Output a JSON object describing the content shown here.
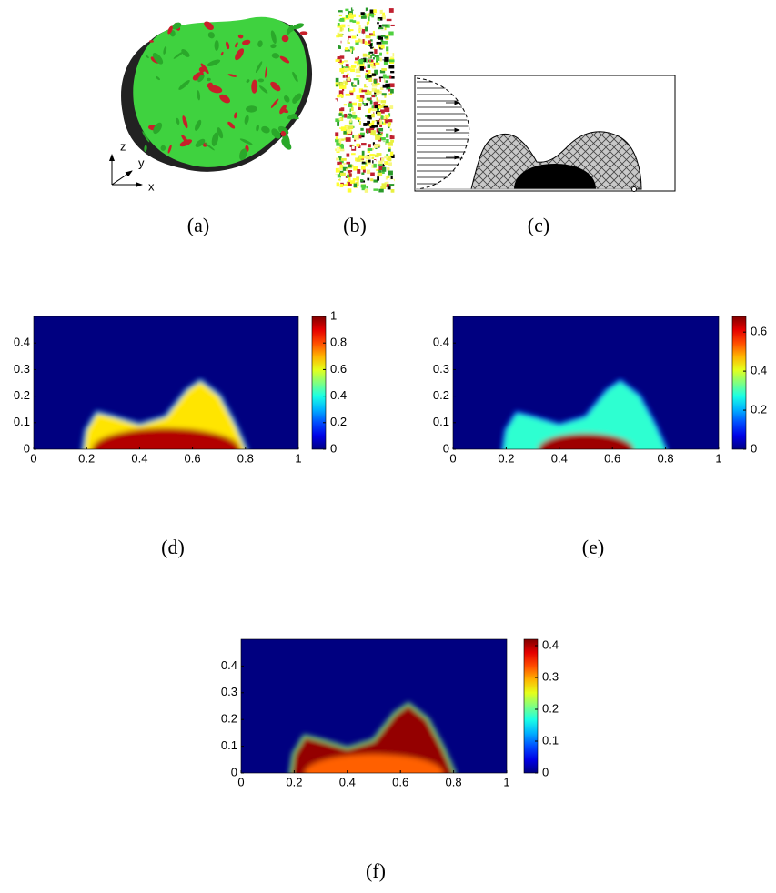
{
  "panels": {
    "a": {
      "label": "(a)",
      "axes": [
        "z",
        "y",
        "x"
      ]
    },
    "b": {
      "label": "(b)"
    },
    "c": {
      "label": "(c)"
    }
  },
  "chart_data": [
    {
      "type": "heatmap",
      "label": "(d)",
      "colormap": "jet",
      "xlim": [
        0,
        1
      ],
      "ylim": [
        0,
        0.5
      ],
      "xticks": [
        0,
        0.2,
        0.4,
        0.6,
        0.8,
        1
      ],
      "yticks": [
        0,
        0.1,
        0.2,
        0.3,
        0.4
      ],
      "clim": [
        0,
        1
      ],
      "cticks": [
        0,
        0.2,
        0.4,
        0.6,
        0.8,
        1
      ]
    },
    {
      "type": "heatmap",
      "label": "(e)",
      "colormap": "jet",
      "xlim": [
        0,
        1
      ],
      "ylim": [
        0,
        0.5
      ],
      "xticks": [
        0,
        0.2,
        0.4,
        0.6,
        0.8,
        1
      ],
      "yticks": [
        0,
        0.1,
        0.2,
        0.3,
        0.4
      ],
      "clim": [
        0,
        0.68
      ],
      "cticks": [
        0,
        0.2,
        0.4,
        0.6
      ]
    },
    {
      "type": "heatmap",
      "label": "(f)",
      "colormap": "jet",
      "xlim": [
        0,
        1
      ],
      "ylim": [
        0,
        0.5
      ],
      "xticks": [
        0,
        0.2,
        0.4,
        0.6,
        0.8,
        1
      ],
      "yticks": [
        0,
        0.1,
        0.2,
        0.3,
        0.4
      ],
      "clim": [
        0,
        0.42
      ],
      "cticks": [
        0,
        0.1,
        0.2,
        0.3,
        0.4
      ]
    }
  ]
}
